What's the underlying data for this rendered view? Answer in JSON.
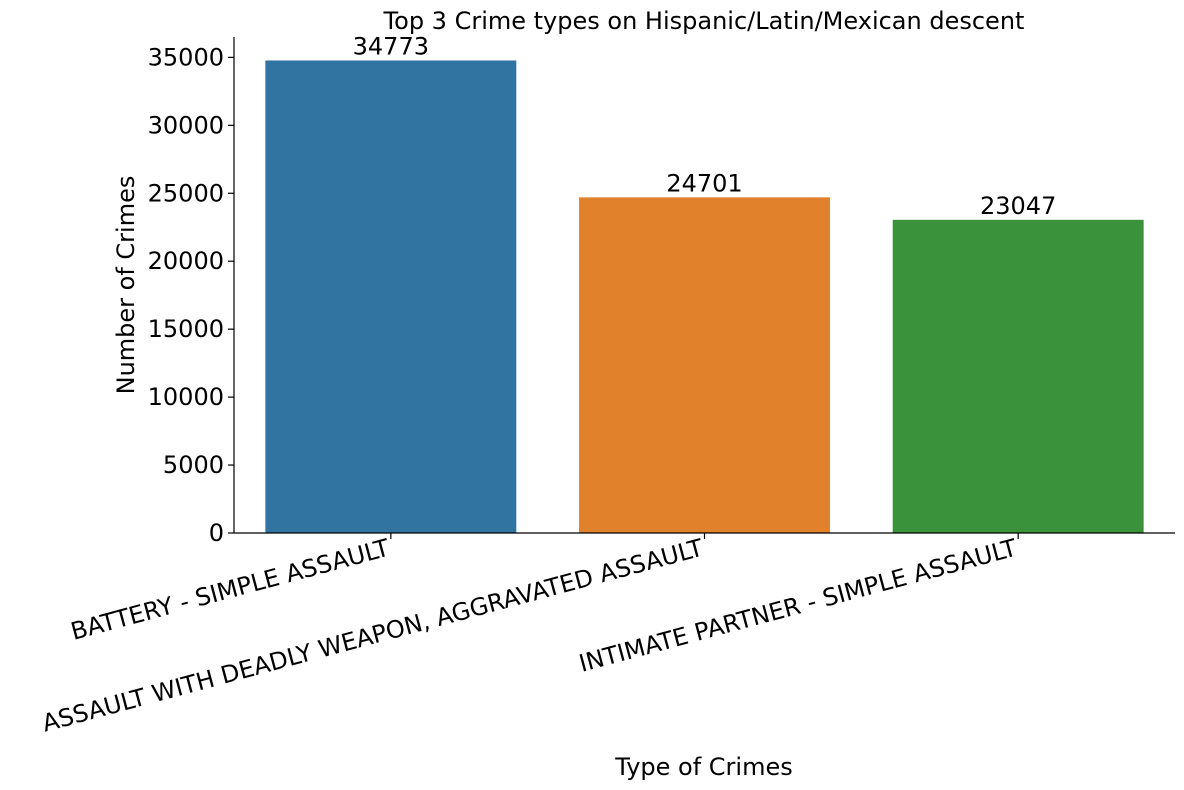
{
  "chart_data": {
    "type": "bar",
    "title": "Top 3 Crime types on Hispanic/Latin/Mexican descent",
    "xlabel": "Type of Crimes",
    "ylabel": "Number of Crimes",
    "categories": [
      "BATTERY - SIMPLE ASSAULT",
      "ASSAULT WITH DEADLY WEAPON, AGGRAVATED ASSAULT",
      "INTIMATE PARTNER - SIMPLE ASSAULT"
    ],
    "values": [
      34773,
      24701,
      23047
    ],
    "data_labels": [
      "34773",
      "24701",
      "23047"
    ],
    "colors": [
      "#3274a1",
      "#e1812c",
      "#3a923a"
    ],
    "ylim": [
      0,
      36500
    ],
    "yticks": [
      0,
      5000,
      10000,
      15000,
      20000,
      25000,
      30000,
      35000
    ],
    "ytick_labels": [
      "0",
      "5000",
      "10000",
      "15000",
      "20000",
      "25000",
      "30000",
      "35000"
    ],
    "grid": false,
    "legend": "none"
  }
}
